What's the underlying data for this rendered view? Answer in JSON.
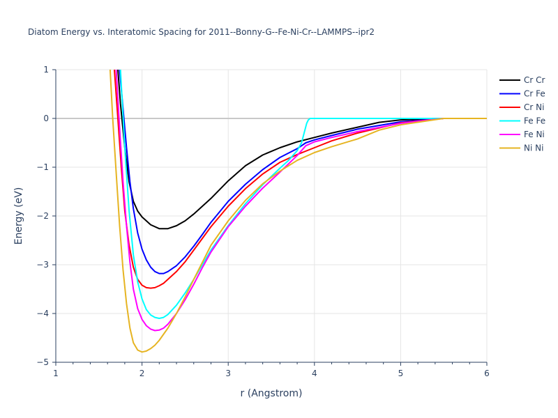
{
  "chart_data": {
    "type": "line",
    "title": "Diatom Energy vs. Interatomic Spacing for 2011--Bonny-G--Fe-Ni-Cr--LAMMPS--ipr2",
    "xlabel": "r (Angstrom)",
    "ylabel": "Energy (eV)",
    "xlim": [
      1,
      6
    ],
    "ylim": [
      -5,
      1
    ],
    "x_ticks": [
      1,
      2,
      3,
      4,
      5,
      6
    ],
    "x_tick_labels": [
      "1",
      "2",
      "3",
      "4",
      "5",
      "6"
    ],
    "y_ticks": [
      -5,
      -4,
      -3,
      -2,
      -1,
      0,
      1
    ],
    "y_tick_labels": [
      "−5",
      "−4",
      "−3",
      "−2",
      "−1",
      "0",
      "1"
    ],
    "grid": true,
    "legend_position": "top-right",
    "series": [
      {
        "name": "Cr Cr",
        "color": "#000000",
        "x": [
          1.72,
          1.75,
          1.8,
          1.85,
          1.9,
          1.95,
          2.0,
          2.1,
          2.2,
          2.3,
          2.4,
          2.5,
          2.6,
          2.8,
          3.0,
          3.2,
          3.4,
          3.6,
          3.8,
          4.0,
          4.2,
          4.5,
          4.75,
          5.0,
          5.5,
          6.0
        ],
        "y": [
          1.0,
          0.3,
          -0.6,
          -1.3,
          -1.7,
          -1.9,
          -2.02,
          -2.18,
          -2.26,
          -2.26,
          -2.2,
          -2.1,
          -1.96,
          -1.64,
          -1.28,
          -0.97,
          -0.75,
          -0.6,
          -0.48,
          -0.39,
          -0.3,
          -0.18,
          -0.08,
          -0.03,
          0.0,
          0.0
        ]
      },
      {
        "name": "Cr Fe",
        "color": "#0000ff",
        "x": [
          1.74,
          1.78,
          1.82,
          1.86,
          1.9,
          1.95,
          2.0,
          2.05,
          2.1,
          2.15,
          2.2,
          2.25,
          2.3,
          2.4,
          2.5,
          2.6,
          2.7,
          2.8,
          3.0,
          3.2,
          3.4,
          3.6,
          3.8,
          3.9,
          4.0,
          4.2,
          4.5,
          5.0,
          5.5,
          6.0
        ],
        "y": [
          1.0,
          0.2,
          -0.6,
          -1.3,
          -1.85,
          -2.35,
          -2.68,
          -2.9,
          -3.05,
          -3.14,
          -3.18,
          -3.18,
          -3.14,
          -3.02,
          -2.84,
          -2.62,
          -2.38,
          -2.13,
          -1.7,
          -1.35,
          -1.05,
          -0.8,
          -0.62,
          -0.5,
          -0.44,
          -0.35,
          -0.22,
          -0.07,
          0.0,
          0.0
        ]
      },
      {
        "name": "Cr Ni",
        "color": "#ff0000",
        "x": [
          1.68,
          1.72,
          1.76,
          1.8,
          1.85,
          1.9,
          1.95,
          2.0,
          2.05,
          2.1,
          2.15,
          2.2,
          2.25,
          2.3,
          2.4,
          2.5,
          2.6,
          2.8,
          3.0,
          3.2,
          3.4,
          3.6,
          3.8,
          4.0,
          4.2,
          4.5,
          5.0,
          5.5,
          6.0
        ],
        "y": [
          1.0,
          0.0,
          -1.0,
          -1.9,
          -2.6,
          -3.05,
          -3.3,
          -3.42,
          -3.47,
          -3.48,
          -3.47,
          -3.43,
          -3.38,
          -3.3,
          -3.14,
          -2.94,
          -2.7,
          -2.22,
          -1.8,
          -1.44,
          -1.14,
          -0.9,
          -0.74,
          -0.6,
          -0.46,
          -0.3,
          -0.09,
          0.0,
          0.0
        ]
      },
      {
        "name": "Fe Fe",
        "color": "#00ffff",
        "x": [
          1.75,
          1.8,
          1.85,
          1.9,
          1.95,
          2.0,
          2.05,
          2.1,
          2.15,
          2.2,
          2.25,
          2.3,
          2.4,
          2.5,
          2.6,
          2.7,
          2.8,
          3.0,
          3.2,
          3.4,
          3.6,
          3.7,
          3.8,
          3.85,
          3.88,
          3.91,
          3.93,
          3.95,
          4.0,
          5.0,
          6.0
        ],
        "y": [
          1.0,
          -0.6,
          -1.9,
          -2.8,
          -3.35,
          -3.7,
          -3.92,
          -4.03,
          -4.08,
          -4.1,
          -4.08,
          -4.02,
          -3.83,
          -3.58,
          -3.3,
          -3.0,
          -2.7,
          -2.2,
          -1.75,
          -1.36,
          -1.02,
          -0.86,
          -0.66,
          -0.5,
          -0.3,
          -0.1,
          -0.03,
          0.0,
          0.0,
          0.0,
          0.0
        ]
      },
      {
        "name": "Fe Ni",
        "color": "#ff00ff",
        "x": [
          1.7,
          1.74,
          1.78,
          1.82,
          1.86,
          1.9,
          1.95,
          2.0,
          2.05,
          2.1,
          2.15,
          2.2,
          2.25,
          2.3,
          2.4,
          2.5,
          2.6,
          2.7,
          2.8,
          3.0,
          3.2,
          3.4,
          3.6,
          3.8,
          3.9,
          4.0,
          4.2,
          4.5,
          5.0,
          5.5,
          6.0
        ],
        "y": [
          1.0,
          -0.2,
          -1.3,
          -2.2,
          -2.95,
          -3.5,
          -3.9,
          -4.12,
          -4.25,
          -4.32,
          -4.35,
          -4.34,
          -4.3,
          -4.22,
          -4.0,
          -3.72,
          -3.4,
          -3.06,
          -2.74,
          -2.22,
          -1.8,
          -1.43,
          -1.1,
          -0.76,
          -0.56,
          -0.48,
          -0.39,
          -0.27,
          -0.1,
          0.0,
          0.0
        ]
      },
      {
        "name": "Ni Ni",
        "color": "#e6b422",
        "x": [
          1.63,
          1.66,
          1.7,
          1.74,
          1.78,
          1.82,
          1.86,
          1.9,
          1.95,
          2.0,
          2.05,
          2.1,
          2.15,
          2.2,
          2.3,
          2.4,
          2.5,
          2.6,
          2.8,
          3.0,
          3.2,
          3.4,
          3.6,
          3.8,
          4.0,
          4.2,
          4.5,
          4.75,
          5.0,
          5.5,
          6.0
        ],
        "y": [
          1.0,
          0.0,
          -1.1,
          -2.2,
          -3.1,
          -3.8,
          -4.3,
          -4.6,
          -4.75,
          -4.79,
          -4.77,
          -4.72,
          -4.65,
          -4.55,
          -4.3,
          -4.0,
          -3.66,
          -3.3,
          -2.6,
          -2.1,
          -1.68,
          -1.34,
          -1.08,
          -0.86,
          -0.7,
          -0.58,
          -0.42,
          -0.24,
          -0.13,
          0.0,
          0.0
        ]
      }
    ]
  }
}
